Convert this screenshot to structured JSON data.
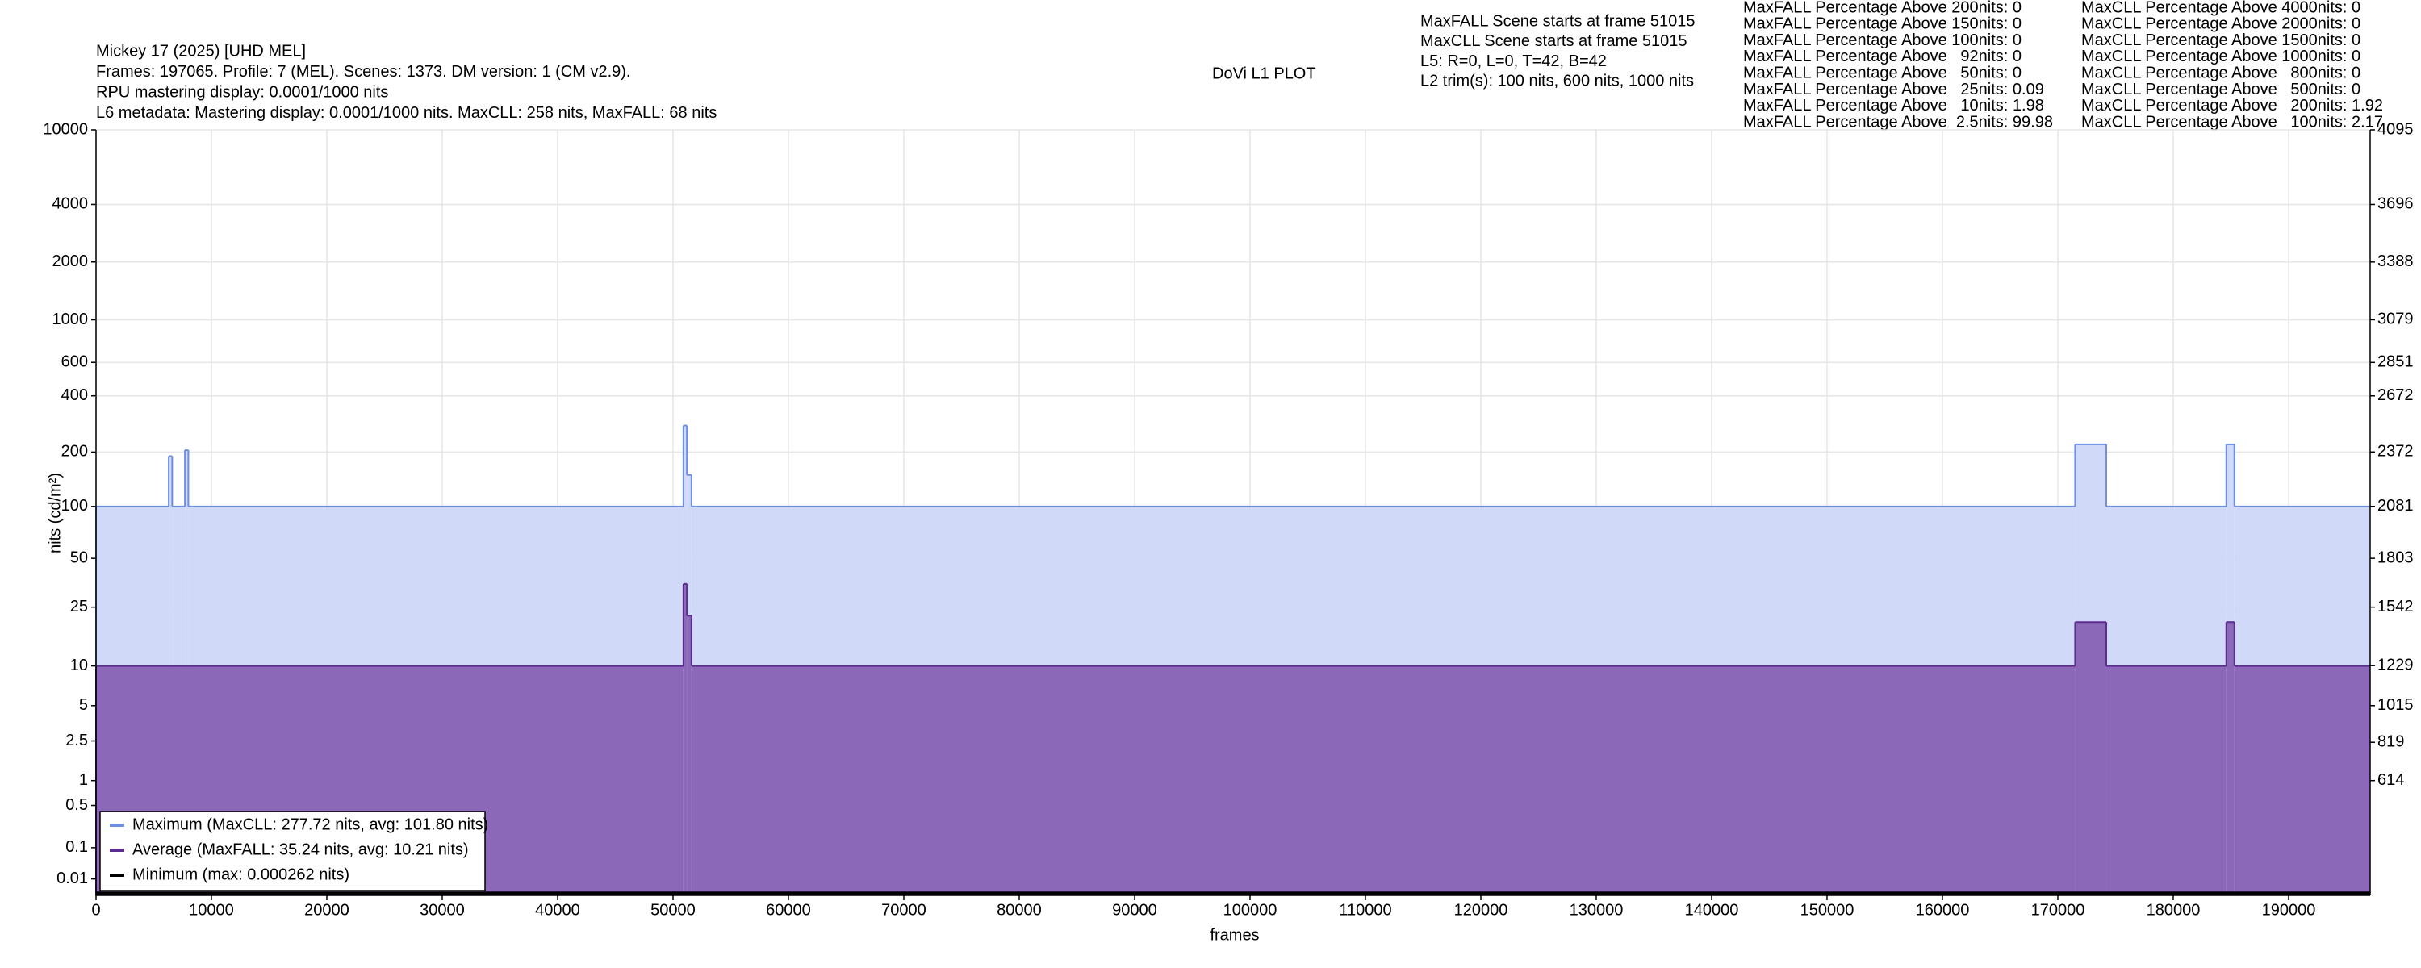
{
  "chart_data": {
    "type": "step",
    "title": "DoVi L1 PLOT",
    "info_lines": [
      "Mickey 17 (2025) [UHD MEL]",
      "Frames: 197065. Profile: 7 (MEL). Scenes: 1373. DM version: 1 (CM v2.9).",
      "RPU mastering display: 0.0001/1000 nits",
      "L6 metadata: Mastering display: 0.0001/1000 nits. MaxCLL: 258 nits, MaxFALL: 68 nits"
    ],
    "scene_lines": [
      "MaxFALL Scene starts at frame 51015",
      "MaxCLL Scene starts at frame 51015",
      "L5: R=0, L=0, T=42, B=42",
      "L2 trim(s): 100 nits, 600 nits, 1000 nits"
    ],
    "maxfall_lines": [
      "MaxFALL Percentage Above 200nits: 0",
      "MaxFALL Percentage Above 150nits: 0",
      "MaxFALL Percentage Above 100nits: 0",
      "MaxFALL Percentage Above   92nits: 0",
      "MaxFALL Percentage Above   50nits: 0",
      "MaxFALL Percentage Above   25nits: 0.09",
      "MaxFALL Percentage Above   10nits: 1.98",
      "MaxFALL Percentage Above  2.5nits: 99.98"
    ],
    "maxcll_lines": [
      "MaxCLL Percentage Above 4000nits: 0",
      "MaxCLL Percentage Above 2000nits: 0",
      "MaxCLL Percentage Above 1500nits: 0",
      "MaxCLL Percentage Above 1000nits: 0",
      "MaxCLL Percentage Above   800nits: 0",
      "MaxCLL Percentage Above   500nits: 0",
      "MaxCLL Percentage Above   200nits: 1.92",
      "MaxCLL Percentage Above   100nits: 2.17"
    ],
    "x_label": "frames",
    "y_label": "nits (cd/m²)",
    "yscale": "pq",
    "xlim": [
      0,
      197065
    ],
    "xticks": [
      0,
      10000,
      20000,
      30000,
      40000,
      50000,
      60000,
      70000,
      80000,
      90000,
      100000,
      110000,
      120000,
      130000,
      140000,
      150000,
      160000,
      170000,
      180000,
      190000
    ],
    "ylim": [
      0,
      10000
    ],
    "yticks": [
      0.01,
      0.1,
      0.5,
      1,
      2.5,
      5,
      10,
      25,
      50,
      100,
      200,
      400,
      600,
      1000,
      2000,
      4000,
      10000
    ],
    "y2lim": [
      0,
      4095
    ],
    "y2ticks": [
      614,
      819,
      1015,
      1229,
      1542,
      1803,
      2081,
      2372,
      2672,
      2851,
      3079,
      3388,
      3696,
      4095
    ],
    "grid": true,
    "legend": "lower left",
    "series": [
      {
        "name": "Maximum (MaxCLL: 277.72 nits, avg: 101.80 nits)",
        "color": "#6e8fe0",
        "fill": "#d0d9f7",
        "x": [
          0,
          6300,
          6600,
          7700,
          8000,
          50900,
          51200,
          51600,
          171500,
          174200,
          184600,
          185300
        ],
        "values": [
          100,
          190,
          100,
          205,
          100,
          278,
          150,
          100,
          220,
          100,
          220,
          100
        ]
      },
      {
        "name": "Average (MaxFALL: 35.24 nits, avg: 10.21 nits)",
        "color": "#5b2d8f",
        "fill": "#8b68b8",
        "x": [
          0,
          50900,
          51200,
          51600,
          171500,
          174200,
          184600,
          185300
        ],
        "values": [
          10,
          35,
          22,
          10,
          20,
          10,
          20,
          10
        ]
      },
      {
        "name": "Minimum (max: 0.000262 nits)",
        "color": "#000000",
        "fill": "none",
        "x": [
          0
        ],
        "values": [
          0.000262
        ]
      }
    ]
  }
}
